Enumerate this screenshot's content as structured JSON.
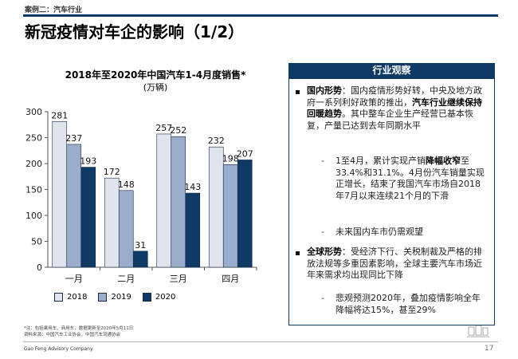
{
  "header": {
    "case_tag": "案例二：汽车行业",
    "title": "新冠疫情对车企的影响（1/2）"
  },
  "chart_data": {
    "type": "bar",
    "title": "2018年至2020年中国汽车1-4月度销售*",
    "subtitle": "(万辆)",
    "categories": [
      "一月",
      "二月",
      "三月",
      "四月"
    ],
    "series": [
      {
        "name": "2018",
        "values": [
          281,
          172,
          257,
          232
        ],
        "color": "#dfe4ed"
      },
      {
        "name": "2019",
        "values": [
          237,
          148,
          252,
          198
        ],
        "color": "#9aadcc"
      },
      {
        "name": "2020",
        "values": [
          193,
          31,
          143,
          207
        ],
        "color": "#0f3a66"
      }
    ],
    "ylim": [
      0,
      300
    ],
    "yticks": [
      0,
      50,
      100,
      150,
      200,
      250,
      300
    ],
    "xlabel": "",
    "ylabel": "",
    "grid": false,
    "legend_position": "bottom"
  },
  "panel": {
    "title": "行业观察",
    "items": [
      {
        "type": "bullet",
        "parts": [
          {
            "text": "国内形势",
            "bold": true
          },
          {
            "text": "：国内疫情形势好转，中央及地方政府一系列利好政策的推出，",
            "bold": false
          },
          {
            "text": "汽车行业继续保持回暖趋势",
            "bold": true
          },
          {
            "text": "。其中整车企业生产经营已基本恢复，产量已达到去年同期水平",
            "bold": false
          }
        ]
      },
      {
        "type": "dash",
        "parts": [
          {
            "text": "1至4月，累计实现产销",
            "bold": false
          },
          {
            "text": "降幅收窄",
            "bold": true
          },
          {
            "text": "至33.4%和31.1%。4月份汽车销量实现正增长，结束了我国汽车市场自2018年7月以来连续21个月的下滑",
            "bold": false
          }
        ]
      },
      {
        "type": "dash",
        "parts": [
          {
            "text": "未来国内车市仍需观望",
            "bold": false
          }
        ]
      },
      {
        "type": "bullet",
        "parts": [
          {
            "text": "全球形势",
            "bold": true
          },
          {
            "text": "：受经济下行、关税制裁及严格的排放法规等多重因素影响，全球主要汽车市场近年来需求均出现同比下降",
            "bold": false
          }
        ]
      },
      {
        "type": "dash",
        "parts": [
          {
            "text": "悲观预测2020年，叠加疫情影响全年降幅将达15%，甚至29%",
            "bold": false
          }
        ]
      }
    ]
  },
  "footnote": {
    "line1": "*注：包括乘用车、商用车，数据更新至2020年5月11日",
    "line2": "资料来源：中国汽车工业协会，中国汽车流通协会"
  },
  "footer": {
    "company": "Gao Feng Advisory Company",
    "page": "17"
  }
}
